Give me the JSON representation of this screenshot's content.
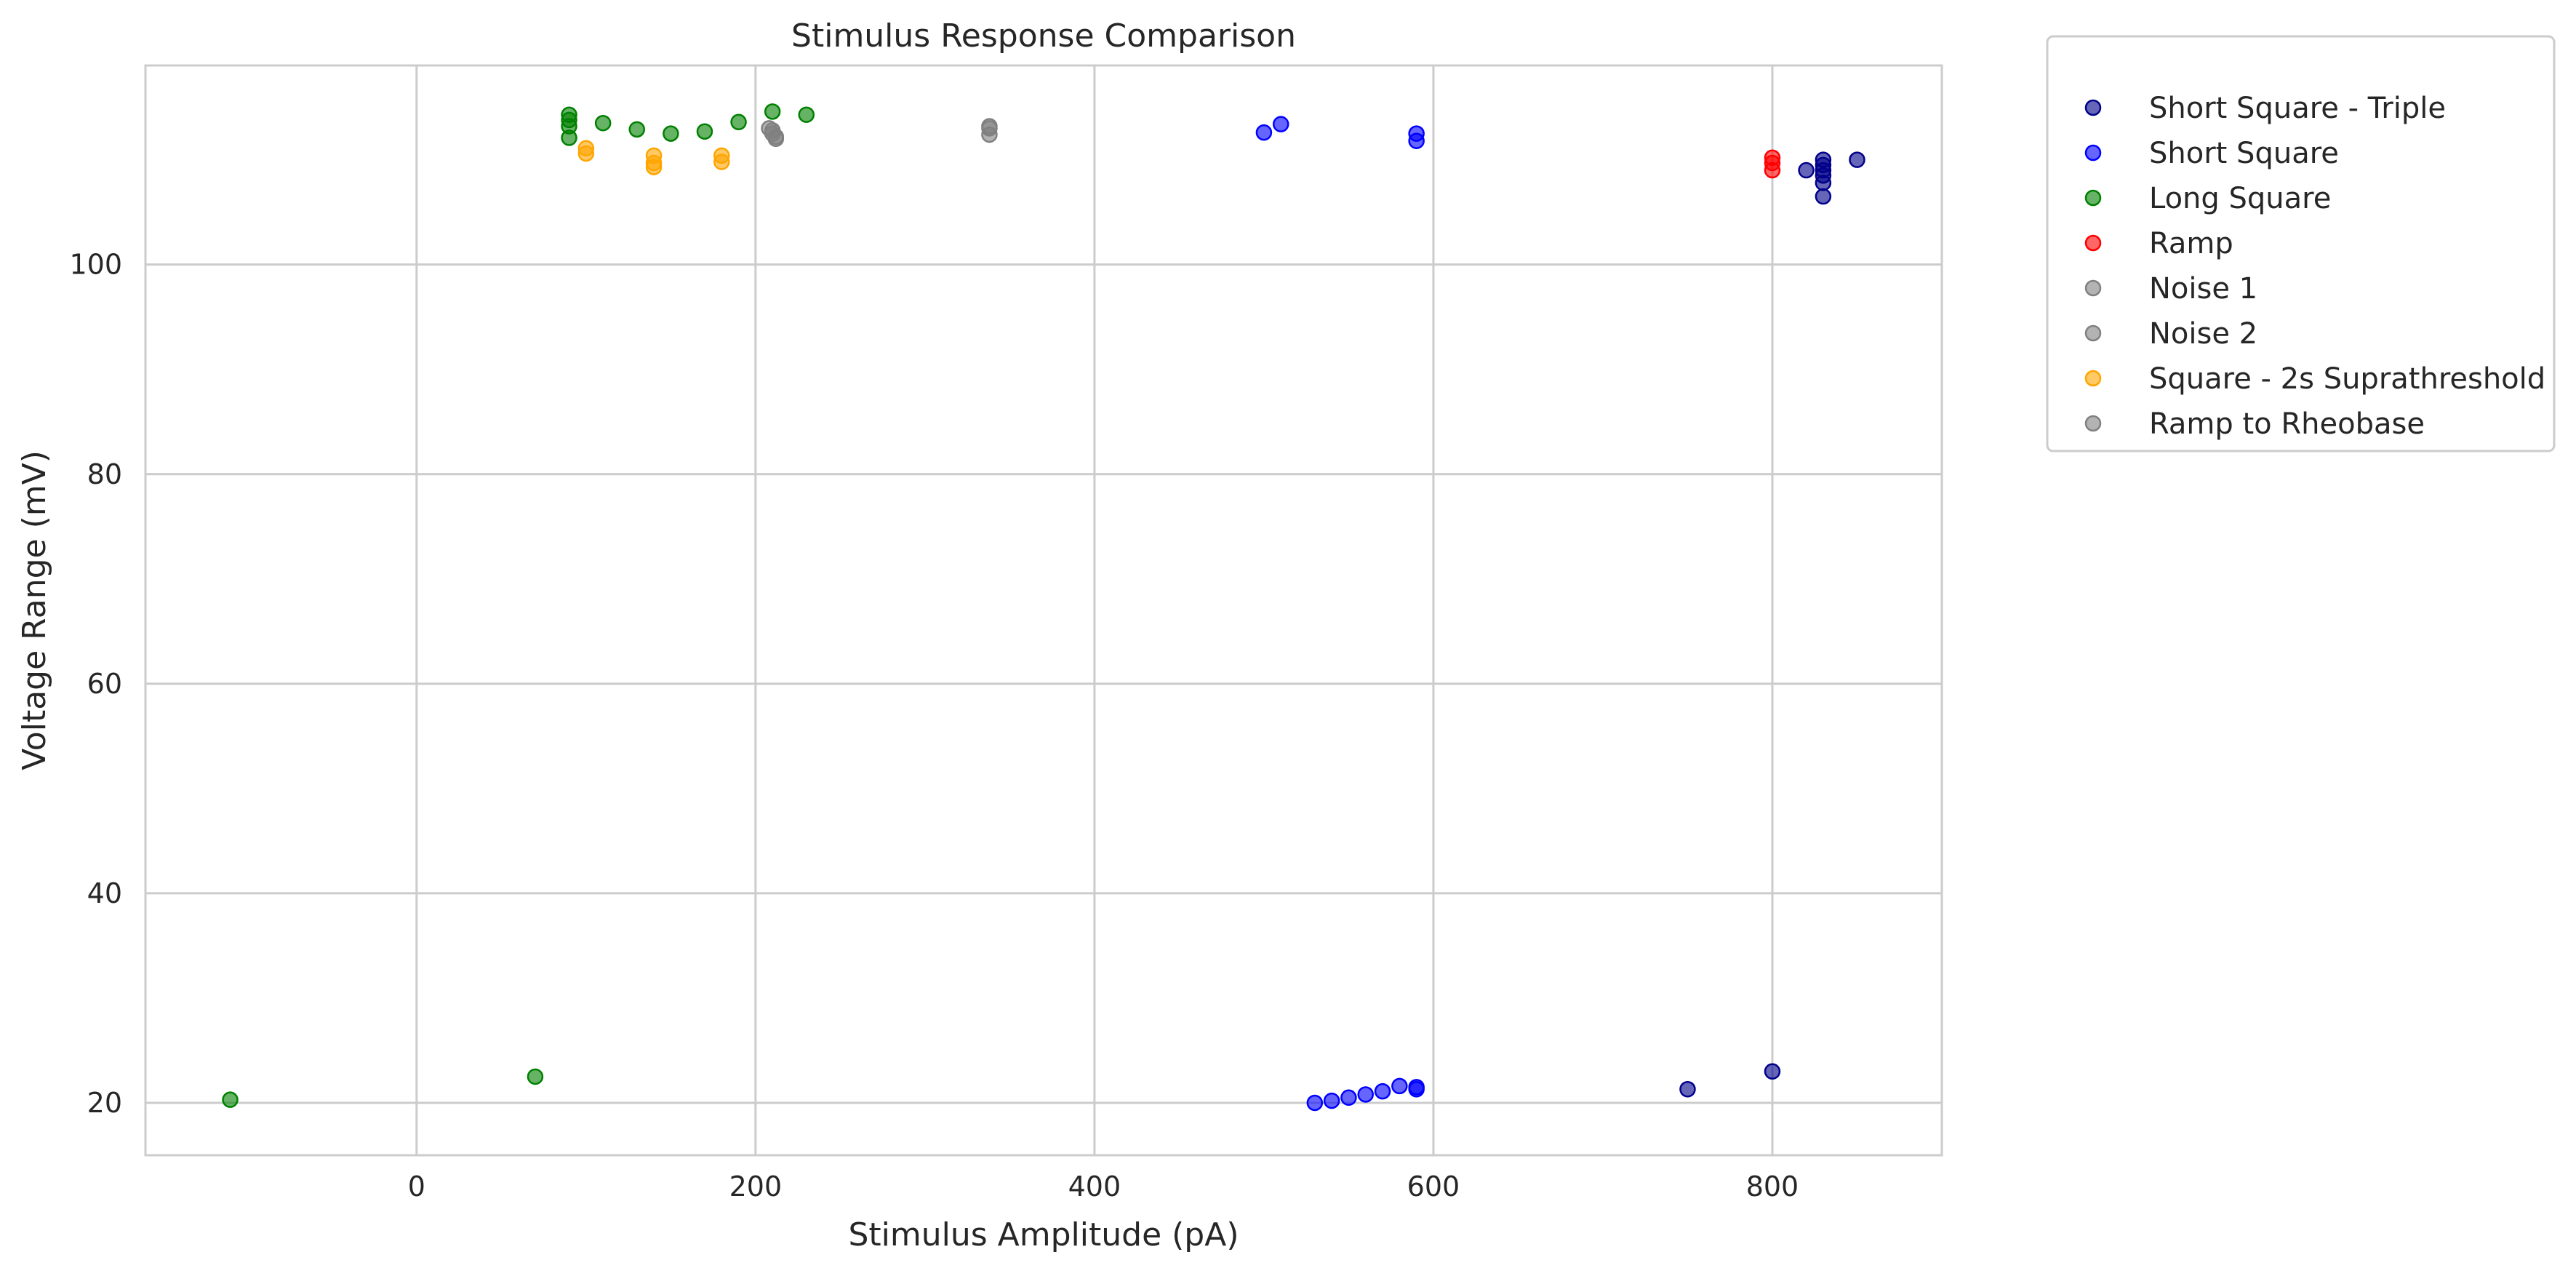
{
  "chart_data": {
    "type": "scatter",
    "title": "Stimulus Response Comparison",
    "xlabel": "Stimulus Amplitude (pA)",
    "ylabel": "Voltage Range (mV)",
    "xlim": [
      -160,
      900
    ],
    "ylim": [
      15,
      119
    ],
    "xticks": [
      0,
      200,
      400,
      600,
      800
    ],
    "yticks": [
      20,
      40,
      60,
      80,
      100
    ],
    "grid": true,
    "legend_position": "outside-top-right",
    "series": [
      {
        "name": "Short Square - Triple",
        "color": "#00008b",
        "points": [
          [
            750,
            21.3
          ],
          [
            800,
            23.0
          ],
          [
            820,
            109.0
          ],
          [
            830,
            110.0
          ],
          [
            830,
            109.5
          ],
          [
            830,
            109.0
          ],
          [
            830,
            108.5
          ],
          [
            830,
            107.8
          ],
          [
            830,
            106.5
          ],
          [
            850,
            110.0
          ]
        ]
      },
      {
        "name": "Short Square",
        "color": "#0000ff",
        "points": [
          [
            500,
            112.6
          ],
          [
            510,
            113.4
          ],
          [
            590,
            112.5
          ],
          [
            590,
            111.8
          ],
          [
            530,
            20.0
          ],
          [
            540,
            20.2
          ],
          [
            550,
            20.5
          ],
          [
            560,
            20.8
          ],
          [
            570,
            21.1
          ],
          [
            580,
            21.6
          ],
          [
            590,
            21.5
          ],
          [
            590,
            21.3
          ]
        ]
      },
      {
        "name": "Long Square",
        "color": "#008000",
        "points": [
          [
            -110,
            20.3
          ],
          [
            70,
            22.5
          ],
          [
            90,
            114.3
          ],
          [
            90,
            113.8
          ],
          [
            90,
            113.2
          ],
          [
            90,
            112.1
          ],
          [
            110,
            113.5
          ],
          [
            130,
            112.9
          ],
          [
            150,
            112.5
          ],
          [
            170,
            112.7
          ],
          [
            190,
            113.6
          ],
          [
            210,
            114.6
          ],
          [
            230,
            114.3
          ]
        ]
      },
      {
        "name": "Ramp",
        "color": "#ff0000",
        "points": [
          [
            800,
            110.2
          ],
          [
            800,
            109.7
          ],
          [
            800,
            109.0
          ]
        ]
      },
      {
        "name": "Noise 1",
        "color": "#808080",
        "points": [
          [
            208,
            113.0
          ],
          [
            210,
            112.5
          ],
          [
            212,
            112.0
          ]
        ]
      },
      {
        "name": "Noise 2",
        "color": "#808080",
        "points": [
          [
            210,
            112.8
          ],
          [
            212,
            112.2
          ],
          [
            338,
            113.2
          ]
        ]
      },
      {
        "name": "Square - 2s Suprathreshold",
        "color": "#ffa500",
        "points": [
          [
            100,
            111.1
          ],
          [
            100,
            110.6
          ],
          [
            140,
            110.4
          ],
          [
            140,
            109.7
          ],
          [
            140,
            109.3
          ],
          [
            180,
            110.4
          ],
          [
            180,
            109.8
          ]
        ]
      },
      {
        "name": "Ramp to Rheobase",
        "color": "#808080",
        "points": [
          [
            338,
            112.4
          ],
          [
            338,
            113.0
          ]
        ]
      }
    ]
  }
}
